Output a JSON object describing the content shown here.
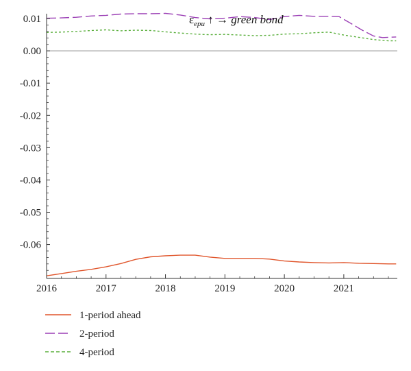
{
  "chart_data": {
    "type": "line",
    "title": {
      "symbol": "ε",
      "subscript": "epu",
      "arrow_up": "↑",
      "arrow_right": "→",
      "target": "green bond"
    },
    "xlabel": "",
    "ylabel": "",
    "xlim": [
      2016.0,
      2021.9
    ],
    "ylim": [
      -0.0705,
      0.0115
    ],
    "xticks": [
      2016,
      2017,
      2018,
      2019,
      2020,
      2021
    ],
    "xtick_labels": [
      "2016",
      "2017",
      "2018",
      "2019",
      "2020",
      "2021"
    ],
    "yticks": [
      0.01,
      0.0,
      -0.01,
      -0.02,
      -0.03,
      -0.04,
      -0.05,
      -0.06
    ],
    "ytick_labels": [
      "0.01",
      "0.00",
      "-0.01",
      "-0.02",
      "-0.03",
      "-0.04",
      "-0.05",
      "-0.06"
    ],
    "zero_line": true,
    "grid": false,
    "legend_position": "bottom-left",
    "series": [
      {
        "name": "1-period ahead",
        "color": "#e0552b",
        "style": "solid",
        "x": [
          2016.0,
          2016.25,
          2016.5,
          2016.75,
          2017.0,
          2017.25,
          2017.5,
          2017.75,
          2018.0,
          2018.25,
          2018.5,
          2018.75,
          2019.0,
          2019.25,
          2019.5,
          2019.75,
          2020.0,
          2020.25,
          2020.5,
          2020.75,
          2021.0,
          2021.25,
          2021.5,
          2021.75,
          2021.88
        ],
        "y": [
          -0.0697,
          -0.069,
          -0.0683,
          -0.0677,
          -0.0669,
          -0.0659,
          -0.0646,
          -0.0638,
          -0.0635,
          -0.0633,
          -0.0633,
          -0.0639,
          -0.0643,
          -0.0643,
          -0.0643,
          -0.0645,
          -0.0651,
          -0.0654,
          -0.0656,
          -0.0657,
          -0.0656,
          -0.0658,
          -0.0659,
          -0.066,
          -0.066
        ]
      },
      {
        "name": "2-period",
        "color": "#9b3fb5",
        "style": "long-dash",
        "x": [
          2016.0,
          2016.25,
          2016.5,
          2016.75,
          2017.0,
          2017.25,
          2017.5,
          2017.75,
          2018.0,
          2018.25,
          2018.5,
          2018.75,
          2019.0,
          2019.25,
          2019.5,
          2019.75,
          2020.0,
          2020.25,
          2020.5,
          2020.75,
          2020.92,
          2021.1,
          2021.3,
          2021.5,
          2021.65,
          2021.88
        ],
        "y": [
          0.0101,
          0.0102,
          0.0104,
          0.0108,
          0.011,
          0.0114,
          0.0115,
          0.0115,
          0.0116,
          0.0111,
          0.0103,
          0.0099,
          0.0101,
          0.0106,
          0.0103,
          0.0097,
          0.0106,
          0.011,
          0.0107,
          0.0107,
          0.0106,
          0.0087,
          0.0065,
          0.0046,
          0.0041,
          0.0043
        ]
      },
      {
        "name": "4-period",
        "color": "#5aaf3c",
        "style": "dashed",
        "x": [
          2016.0,
          2016.25,
          2016.5,
          2016.75,
          2017.0,
          2017.25,
          2017.5,
          2017.75,
          2018.0,
          2018.25,
          2018.5,
          2018.75,
          2019.0,
          2019.25,
          2019.5,
          2019.75,
          2020.0,
          2020.25,
          2020.5,
          2020.75,
          2021.0,
          2021.25,
          2021.5,
          2021.75,
          2021.88
        ],
        "y": [
          0.0057,
          0.0058,
          0.006,
          0.0063,
          0.0065,
          0.0062,
          0.0064,
          0.0063,
          0.0059,
          0.0055,
          0.0052,
          0.005,
          0.0051,
          0.0049,
          0.0047,
          0.0048,
          0.0052,
          0.0053,
          0.0056,
          0.0058,
          0.0049,
          0.0042,
          0.0035,
          0.0031,
          0.0031
        ]
      }
    ]
  }
}
